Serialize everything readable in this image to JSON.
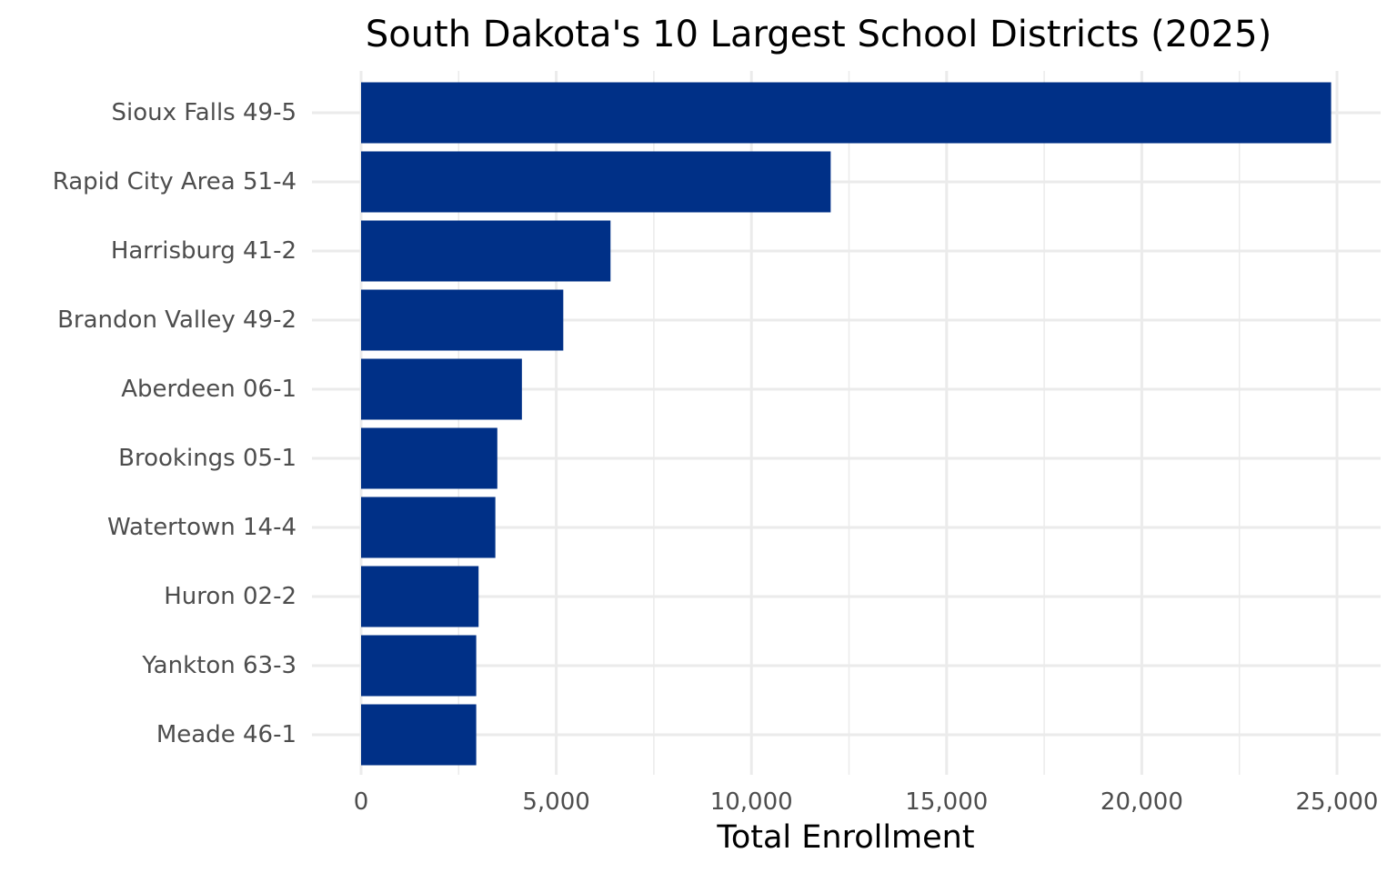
{
  "chart_data": {
    "type": "bar",
    "orientation": "horizontal",
    "title": "South Dakota's 10 Largest School Districts (2025)",
    "xlabel": "Total Enrollment",
    "ylabel": "",
    "categories": [
      "Sioux Falls 49-5",
      "Rapid City Area 51-4",
      "Harrisburg 41-2",
      "Brandon Valley 49-2",
      "Aberdeen 06-1",
      "Brookings 05-1",
      "Watertown 14-4",
      "Huron 02-2",
      "Yankton 63-3",
      "Meade 46-1"
    ],
    "values": [
      24850,
      12030,
      6390,
      5180,
      4120,
      3490,
      3440,
      3010,
      2950,
      2950
    ],
    "xlim": [
      0,
      25000
    ],
    "xticks": [
      0,
      5000,
      10000,
      15000,
      20000,
      25000
    ],
    "xtick_labels": [
      "0",
      "5,000",
      "10,000",
      "15,000",
      "20,000",
      "25,000"
    ],
    "grid": true,
    "legend": "none",
    "bar_color": "#003087"
  }
}
